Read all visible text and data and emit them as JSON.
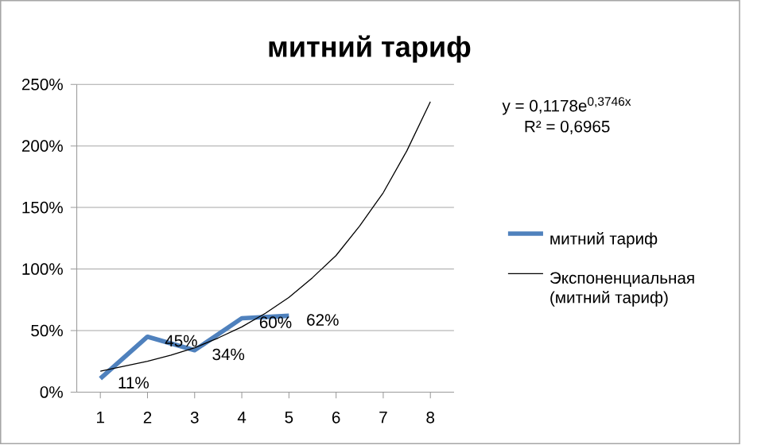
{
  "chart_data": {
    "type": "line",
    "title": "митний тариф",
    "x": [
      1,
      2,
      3,
      4,
      5
    ],
    "xlim": [
      0.5,
      8.5
    ],
    "xticks": [
      1,
      2,
      3,
      4,
      5,
      6,
      7,
      8
    ],
    "ylim": [
      0,
      250
    ],
    "yticks": [
      {
        "value": 0,
        "label": "0%"
      },
      {
        "value": 50,
        "label": "50%"
      },
      {
        "value": 100,
        "label": "100%"
      },
      {
        "value": 150,
        "label": "150%"
      },
      {
        "value": 200,
        "label": "200%"
      },
      {
        "value": 250,
        "label": "250%"
      }
    ],
    "grid": "y",
    "legend": "right",
    "marker": "none",
    "series": [
      {
        "name": "митний тариф",
        "color": "#4f81bd",
        "values": [
          11,
          45,
          34,
          60,
          62
        ],
        "value_labels": [
          "11%",
          "45%",
          "34%",
          "60%",
          "62%"
        ]
      },
      {
        "name": "Экспоненциальная (митний тариф)",
        "color": "#000000",
        "type": "line",
        "x": [
          1,
          1.5,
          2,
          2.5,
          3,
          3.5,
          4,
          4.5,
          5,
          5.5,
          6,
          6.5,
          7,
          7.5,
          8
        ],
        "values": [
          17,
          21,
          25,
          30,
          36,
          44,
          53,
          64,
          77,
          93,
          111,
          135,
          162,
          196,
          236
        ]
      }
    ],
    "annotations": [
      "y = 0,1178e$^{0,3746x}$",
      "R² = 0,6965"
    ]
  }
}
